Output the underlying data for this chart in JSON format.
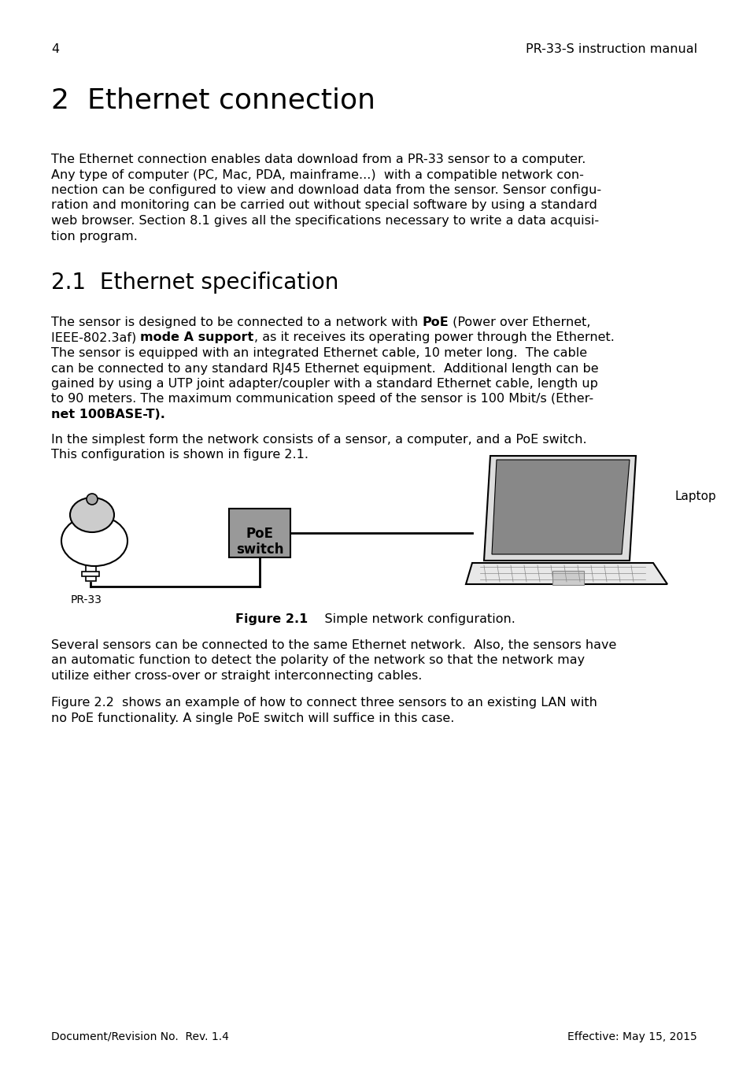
{
  "page_num": "4",
  "header_right": "PR-33-S instruction manual",
  "chapter_title": "2  Ethernet connection",
  "para1_line1": "The Ethernet connection enables data download from a PR-33 sensor to a computer.",
  "para1_line2": "Any type of computer (PC, Mac, PDA, mainframe...)  with a compatible network con-",
  "para1_line3": "nection can be configured to view and download data from the sensor. Sensor configu-",
  "para1_line4": "ration and monitoring can be carried out without special software by using a standard",
  "para1_line5": "web browser. Section 8.1 gives all the specifications necessary to write a data acquisi-",
  "para1_line6": "tion program.",
  "section_title": "2.1  Ethernet specification",
  "p2_l1_a": "The sensor is designed to be connected to a network with ",
  "p2_l1_b": "PoE",
  "p2_l1_c": " (Power over Ethernet,",
  "p2_l2_a": "IEEE-802.3af) ",
  "p2_l2_b": "mode A support",
  "p2_l2_c": ", as it receives its operating power through the Ethernet.",
  "p2_l3": "The sensor is equipped with an integrated Ethernet cable, 10 meter long.  The cable",
  "p2_l4": "can be connected to any standard RJ45 Ethernet equipment.  Additional length can be",
  "p2_l5": "gained by using a UTP joint adapter/coupler with a standard Ethernet cable, length up",
  "p2_l6": "to 90 meters. The maximum communication speed of the sensor is 100 Mbit/s (Ether-",
  "p2_l7_a": "net 100BASE-T).",
  "para3_line1": "In the simplest form the network consists of a sensor, a computer, and a PoE switch.",
  "para3_line2": "This configuration is shown in figure 2.1.",
  "fig_caption_bold": "Figure 2.1",
  "fig_caption_normal": "    Simple network configuration.",
  "para4_line1": "Several sensors can be connected to the same Ethernet network.  Also, the sensors have",
  "para4_line2": "an automatic function to detect the polarity of the network so that the network may",
  "para4_line3": "utilize either cross-over or straight interconnecting cables.",
  "para5_line1": "Figure 2.2  shows an example of how to connect three sensors to an existing LAN with",
  "para5_line2": "no PoE functionality. A single PoE switch will suffice in this case.",
  "footer_left": "Document/Revision No.  Rev. 1.4",
  "footer_right": "Effective: May 15, 2015",
  "bg_color": "#ffffff",
  "text_color": "#000000",
  "poe_box_color": "#999999",
  "laptop_screen_color": "#888888",
  "laptop_body_color": "#e8e8e8",
  "sensor_gray": "#cccccc"
}
